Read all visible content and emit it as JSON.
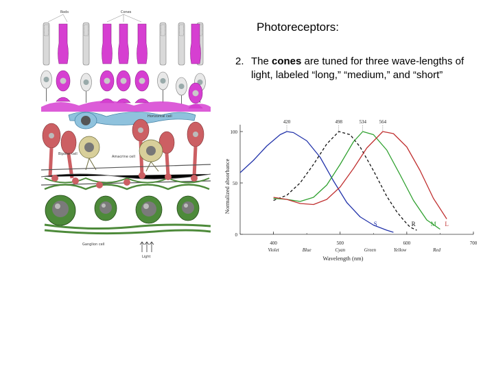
{
  "slide": {
    "title": "Photoreceptors:",
    "item_number": "2.",
    "item_text_pre": "The ",
    "item_text_bold": "cones",
    "item_text_post": " are tuned for three wave-lengths of light, labeled “long,” “medium,” and “short”"
  },
  "retina_figure": {
    "labels": {
      "rods": "Rods",
      "cones": "Cones",
      "horizontal": "Horizontal cell",
      "bipolar": "Bipolar cell",
      "amacrine": "Amacrine cell",
      "ganglion": "Ganglion cell",
      "light": "Light"
    },
    "colors": {
      "rod": "#d9d9d9",
      "cone": "#d63fd1",
      "horizontal": "#8fc2dd",
      "bipolar": "#cc5f63",
      "amacrine": "#d8cf9a",
      "ganglion": "#4d8a3a"
    }
  },
  "chart_data": {
    "type": "line",
    "ylabel": "Normalized absorbance",
    "xlabel": "Wavelength (nm)",
    "xlim": [
      350,
      700
    ],
    "ylim": [
      0,
      100
    ],
    "x_ticks": [
      400,
      500,
      600,
      700
    ],
    "y_ticks": [
      0,
      50,
      100
    ],
    "color_names": [
      {
        "label": "Violet",
        "x": 400
      },
      {
        "label": "Blue",
        "x": 450
      },
      {
        "label": "Cyan",
        "x": 500
      },
      {
        "label": "Green",
        "x": 545
      },
      {
        "label": "Yellow",
        "x": 590
      },
      {
        "label": "Red",
        "x": 645
      }
    ],
    "series": [
      {
        "name": "S",
        "peak_label": "420",
        "color": "#2233aa",
        "dashed": false,
        "x": [
          350,
          370,
          390,
          410,
          420,
          430,
          450,
          470,
          490,
          510,
          530,
          550,
          570,
          580
        ],
        "y": [
          60,
          72,
          86,
          97,
          100,
          99,
          91,
          75,
          52,
          31,
          17,
          9,
          4,
          2
        ]
      },
      {
        "name": "R",
        "peak_label": "498",
        "color": "#111111",
        "dashed": true,
        "x": [
          400,
          420,
          440,
          460,
          480,
          498,
          515,
          530,
          550,
          570,
          585,
          595,
          605,
          615
        ],
        "y": [
          33,
          38,
          50,
          68,
          88,
          100,
          97,
          85,
          62,
          37,
          22,
          14,
          7,
          4
        ]
      },
      {
        "name": "M",
        "peak_label": "534",
        "color": "#2ea02e",
        "dashed": false,
        "x": [
          400,
          420,
          440,
          460,
          480,
          500,
          520,
          534,
          550,
          570,
          590,
          610,
          630,
          650
        ],
        "y": [
          35,
          34,
          32,
          36,
          48,
          68,
          90,
          100,
          97,
          82,
          58,
          33,
          14,
          5
        ]
      },
      {
        "name": "L",
        "peak_label": "564",
        "color": "#c03030",
        "dashed": false,
        "x": [
          400,
          420,
          440,
          460,
          480,
          500,
          520,
          540,
          564,
          580,
          600,
          620,
          640,
          660
        ],
        "y": [
          36,
          34,
          30,
          29,
          34,
          46,
          64,
          84,
          100,
          98,
          85,
          62,
          35,
          15
        ]
      }
    ]
  }
}
